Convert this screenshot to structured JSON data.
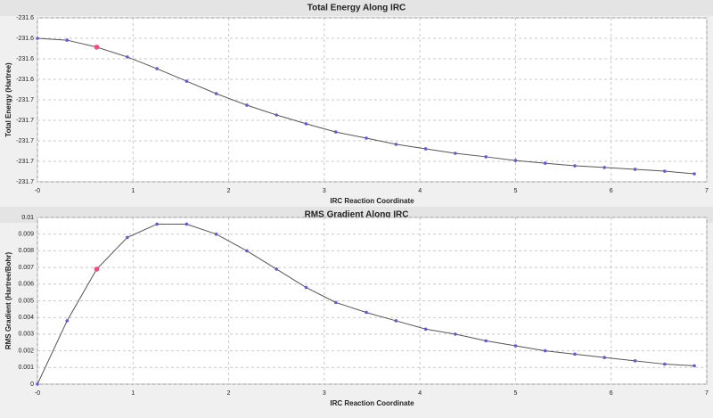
{
  "chart_data": [
    {
      "type": "line",
      "title": "Total Energy Along IRC",
      "x_label": "IRC Reaction Coordinate",
      "y_label": "Total Energy (Hartree)",
      "x": [
        0,
        0.31,
        0.62,
        0.94,
        1.25,
        1.56,
        1.87,
        2.19,
        2.5,
        2.81,
        3.12,
        3.44,
        3.75,
        4.06,
        4.37,
        4.69,
        5.0,
        5.31,
        5.62,
        5.93,
        6.25,
        6.56,
        6.87
      ],
      "values": [
        -231.622,
        -231.6229,
        -231.6263,
        -231.6311,
        -231.6368,
        -231.6429,
        -231.649,
        -231.6546,
        -231.6594,
        -231.6637,
        -231.6677,
        -231.6707,
        -231.6737,
        -231.6759,
        -231.6781,
        -231.6798,
        -231.6816,
        -231.6829,
        -231.6842,
        -231.685,
        -231.6859,
        -231.6868,
        -231.6881
      ],
      "color": "#555555",
      "marker_color": "#6a5acd",
      "highlight_color": "#e8507a",
      "highlighted_index": 2,
      "xlim": [
        0,
        7
      ],
      "xticks": [
        {
          "value": 0,
          "label": "-0"
        },
        1,
        2,
        3,
        4,
        5,
        6,
        7
      ],
      "ylim": [
        -231.692,
        -231.612
      ],
      "yticks": [
        {
          "value": -231.612,
          "label": "-231.6"
        },
        {
          "value": -231.622,
          "label": "-231.6"
        },
        {
          "value": -231.632,
          "label": "-231.6"
        },
        {
          "value": -231.642,
          "label": "-231.6"
        },
        {
          "value": -231.652,
          "label": "-231.7"
        },
        {
          "value": -231.662,
          "label": "-231.7"
        },
        {
          "value": -231.672,
          "label": "-231.7"
        },
        {
          "value": -231.682,
          "label": "-231.7"
        },
        {
          "value": -231.692,
          "label": "-231.7"
        }
      ],
      "grid": true
    },
    {
      "type": "line",
      "title": "RMS Gradient Along IRC",
      "x_label": "IRC Reaction Coordinate",
      "y_label": "RMS Gradient (Hartree/Bohr)",
      "x": [
        0,
        0.31,
        0.62,
        0.94,
        1.25,
        1.56,
        1.87,
        2.19,
        2.5,
        2.81,
        3.12,
        3.44,
        3.75,
        4.06,
        4.37,
        4.69,
        5.0,
        5.31,
        5.62,
        5.93,
        6.25,
        6.56,
        6.87
      ],
      "values": [
        0,
        0.0038,
        0.0069,
        0.0088,
        0.0096,
        0.0096,
        0.009,
        0.008,
        0.0069,
        0.0058,
        0.0049,
        0.0043,
        0.0038,
        0.0033,
        0.003,
        0.0026,
        0.0023,
        0.002,
        0.0018,
        0.0016,
        0.0014,
        0.0012,
        0.0011
      ],
      "color": "#555555",
      "marker_color": "#6a5acd",
      "highlight_color": "#e8507a",
      "highlighted_index": 2,
      "xlim": [
        0,
        7
      ],
      "xticks": [
        {
          "value": 0,
          "label": "-0"
        },
        1,
        2,
        3,
        4,
        5,
        6,
        7
      ],
      "ylim": [
        0,
        0.01
      ],
      "yticks": [
        0,
        0.001,
        0.002,
        0.003,
        0.004,
        0.005,
        0.006,
        0.007,
        0.008,
        0.009,
        0.01
      ],
      "grid": true
    }
  ]
}
